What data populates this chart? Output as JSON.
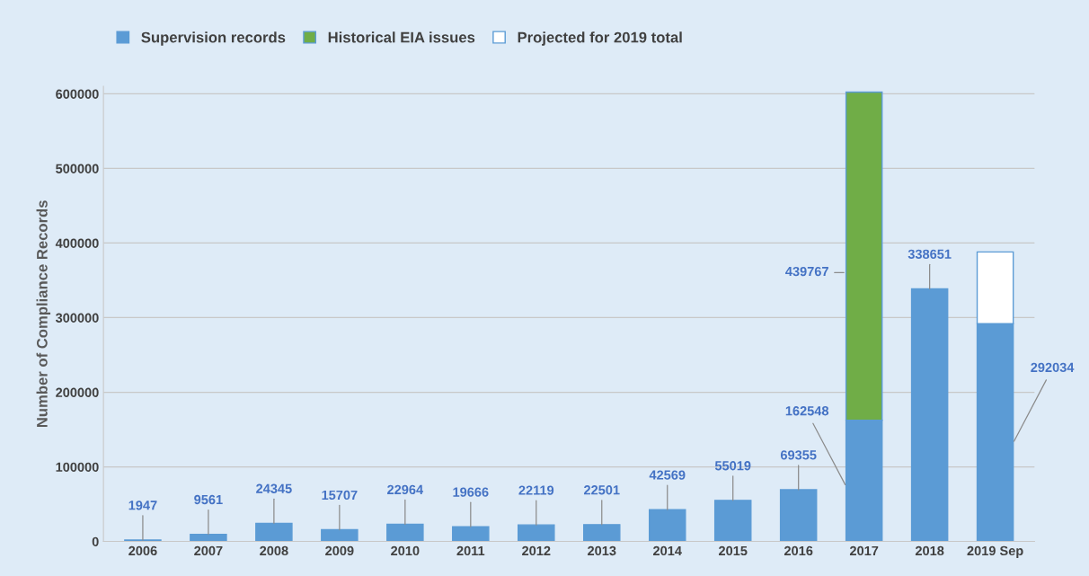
{
  "chart_data": {
    "type": "bar",
    "stacked": true,
    "ylabel": "Number of Compliance Records",
    "categories": [
      "2006",
      "2007",
      "2008",
      "2009",
      "2010",
      "2011",
      "2012",
      "2013",
      "2014",
      "2015",
      "2016",
      "2017",
      "2018",
      "2019 Sep"
    ],
    "series": [
      {
        "name": "Supervision records",
        "color": "#5b9bd5",
        "values": [
          1947,
          9561,
          24345,
          15707,
          22964,
          19666,
          22119,
          22501,
          42569,
          55019,
          69355,
          162548,
          338651,
          292034
        ],
        "value_labels": [
          "1947",
          "9561",
          "24345",
          "15707",
          "22964",
          "19666",
          "22119",
          "22501",
          "42569",
          "55019",
          "69355",
          "162548",
          "338651",
          "292034"
        ]
      },
      {
        "name": "Historical EIA issues",
        "color": "#70ad47",
        "values": [
          null,
          null,
          null,
          null,
          null,
          null,
          null,
          null,
          null,
          null,
          null,
          439767,
          null,
          null
        ],
        "value_labels": [
          null,
          null,
          null,
          null,
          null,
          null,
          null,
          null,
          null,
          null,
          null,
          "439767",
          null,
          null
        ]
      },
      {
        "name": "Projected for 2019 total",
        "color": "#ffffff",
        "values": [
          null,
          null,
          null,
          null,
          null,
          null,
          null,
          null,
          null,
          null,
          null,
          null,
          null,
          96000
        ]
      }
    ],
    "ylim": [
      0,
      610000
    ],
    "yticks": [
      0,
      100000,
      200000,
      300000,
      400000,
      500000,
      600000
    ],
    "grid": "y",
    "legend": "top left"
  }
}
